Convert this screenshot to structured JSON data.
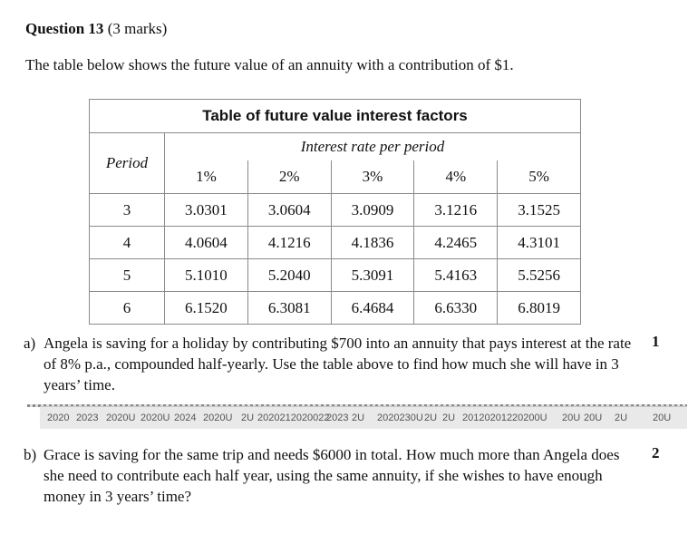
{
  "question": {
    "title": "Question 13",
    "marks_text": "(3 marks)",
    "intro": "The table below shows the future value of an annuity with a contribution of $1."
  },
  "table": {
    "title": "Table of future value interest factors",
    "rate_header": "Interest rate per period",
    "period_header": "Period",
    "rates": [
      "1%",
      "2%",
      "3%",
      "4%",
      "5%"
    ],
    "rows": [
      {
        "period": "3",
        "values": [
          "3.0301",
          "3.0604",
          "3.0909",
          "3.1216",
          "3.1525"
        ]
      },
      {
        "period": "4",
        "values": [
          "4.0604",
          "4.1216",
          "4.1836",
          "4.2465",
          "4.3101"
        ]
      },
      {
        "period": "5",
        "values": [
          "5.1010",
          "5.2040",
          "5.3091",
          "5.4163",
          "5.5256"
        ]
      },
      {
        "period": "6",
        "values": [
          "6.1520",
          "6.3081",
          "6.4684",
          "6.6330",
          "6.8019"
        ]
      }
    ]
  },
  "parts": {
    "a": {
      "label": "a)",
      "text": "Angela is saving for a holiday by contributing $700 into an annuity that pays interest at the rate of 8% p.a., compounded half-yearly. Use the table above to find how much she will have in 3 years’ time.",
      "marks": "1"
    },
    "b": {
      "label": "b)",
      "text": "Grace is saving for the same trip and needs $6000 in total. How much more than Angela does she need to contribute each half year, using the same annuity, if she wishes to have enough money in 3 years’ time?",
      "marks": "2"
    }
  },
  "footer_strip": {
    "items": [
      "2020",
      "2023",
      "2020U",
      "2020U",
      "2024",
      "2020U",
      "2U",
      "2020212020022",
      "2023",
      "2U",
      "2020230U",
      "2U",
      "2U",
      "20120201220200U",
      "20U",
      "20U",
      "2U",
      "20U"
    ]
  }
}
